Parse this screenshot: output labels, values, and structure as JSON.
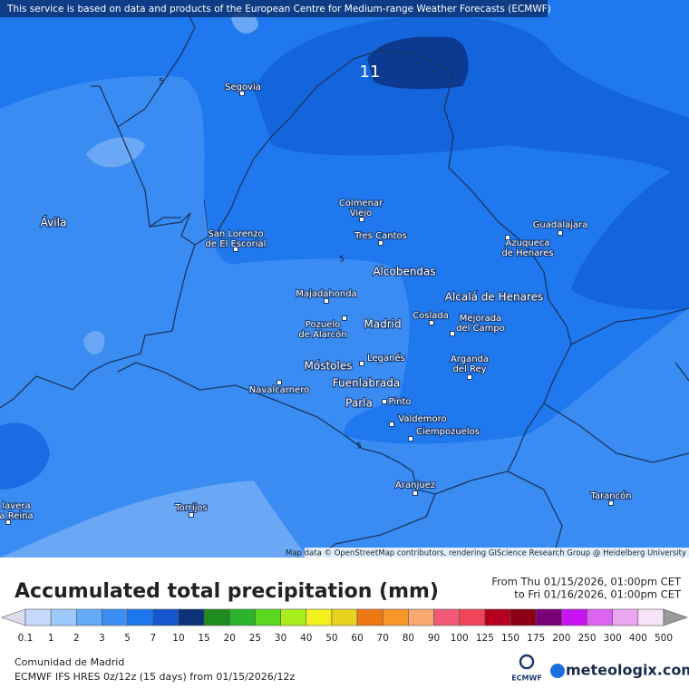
{
  "header": {
    "notice": "This service is based on data and products of the European Centre for Medium-range Weather Forecasts (ECMWF)"
  },
  "map": {
    "places": [
      {
        "lines": [
          "Segovia"
        ]
      },
      {
        "lines": [
          "Ávila"
        ]
      },
      {
        "lines": [
          "Colmenar",
          "Viejo"
        ]
      },
      {
        "lines": [
          "Guadalajara"
        ]
      },
      {
        "lines": [
          "San Lorenzo",
          "de El Escorial"
        ]
      },
      {
        "lines": [
          "Tres Cantos"
        ]
      },
      {
        "lines": [
          "Azuqueca",
          "de Henares"
        ]
      },
      {
        "lines": [
          "Alcobendas"
        ]
      },
      {
        "lines": [
          "Majadahonda"
        ]
      },
      {
        "lines": [
          "Alcalá de Henares"
        ]
      },
      {
        "lines": [
          "Pozuelo",
          "de Alarcón"
        ]
      },
      {
        "lines": [
          "Madrid"
        ]
      },
      {
        "lines": [
          "Coslada"
        ]
      },
      {
        "lines": [
          "Mejorada",
          "del Campo"
        ]
      },
      {
        "lines": [
          "Leganés"
        ]
      },
      {
        "lines": [
          "Móstoles"
        ]
      },
      {
        "lines": [
          "Arganda",
          "del Rey"
        ]
      },
      {
        "lines": [
          "Fuenlabrada"
        ]
      },
      {
        "lines": [
          "Navalcarnero"
        ]
      },
      {
        "lines": [
          "Parla"
        ]
      },
      {
        "lines": [
          "Pinto"
        ]
      },
      {
        "lines": [
          "Valdemoro"
        ]
      },
      {
        "lines": [
          "Ciempozuelos"
        ]
      },
      {
        "lines": [
          "Aranjuez"
        ]
      },
      {
        "lines": [
          "Tarancón"
        ]
      },
      {
        "lines": [
          "Torrijos"
        ]
      },
      {
        "lines": [
          "lavera",
          "a Reina"
        ]
      }
    ],
    "contour_labels": [
      "11",
      "5",
      "5",
      "5"
    ],
    "attribution": "Map data © OpenStreetMap contributors, rendering GIScience Research Group @ Heidelberg University"
  },
  "legend": {
    "title": "Accumulated total precipitation (mm)",
    "from": "From Thu 01/15/2026, 01:00pm CET",
    "to": "to Fri 01/16/2026, 01:00pm CET",
    "ticks": [
      0.1,
      1,
      2,
      3,
      5,
      7,
      10,
      15,
      20,
      25,
      30,
      40,
      50,
      60,
      70,
      80,
      90,
      100,
      125,
      150,
      175,
      200,
      250,
      300,
      400,
      500
    ],
    "colors": [
      "#dcdcee",
      "#c6dafc",
      "#9ccafc",
      "#64aaf8",
      "#3c8ef4",
      "#1e76ec",
      "#1456cc",
      "#0c3278",
      "#1e8c1e",
      "#2cb42c",
      "#5ad81e",
      "#a8ee1e",
      "#f4f01e",
      "#e8d21e",
      "#f07814",
      "#f89628",
      "#f8aa6e",
      "#f05a78",
      "#ee4658",
      "#b4001e",
      "#8c0014",
      "#780078",
      "#c814f0",
      "#dc64f0",
      "#eaa6f0",
      "#f8e4f8",
      "#d4d4d4",
      "#9a9a9a"
    ]
  },
  "footer": {
    "region": "Comunidad de Madrid",
    "model": "ECMWF IFS HRES 0z/12z (15 days) from 01/15/2026/12z",
    "ecmwf": "ECMWF",
    "brand": "meteologix.com"
  }
}
